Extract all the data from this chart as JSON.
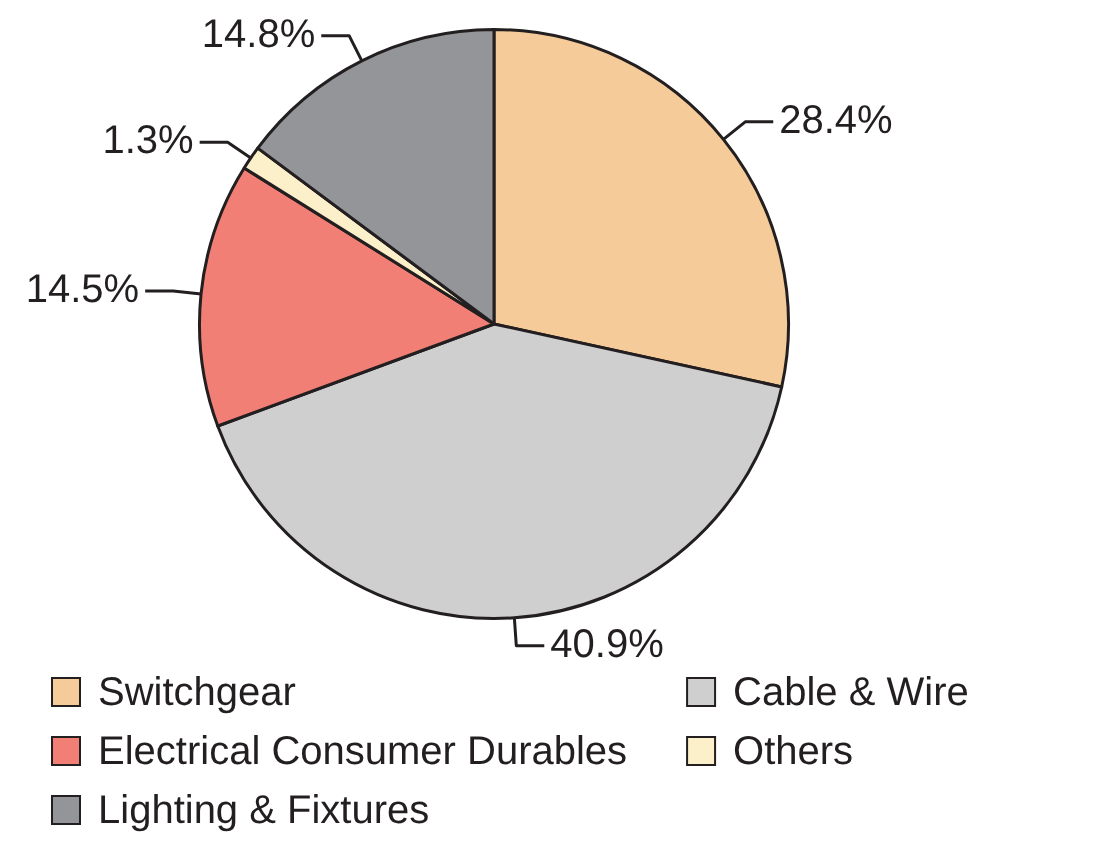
{
  "chart_data": {
    "type": "pie",
    "categories": [
      "Switchgear",
      "Cable & Wire",
      "Electrical Consumer Durables",
      "Others",
      "Lighting & Fixtures"
    ],
    "values": [
      28.4,
      40.9,
      14.5,
      1.3,
      14.8
    ],
    "colors": [
      "#f6cb9a",
      "#cfcfcf",
      "#f27f75",
      "#fbf0c9",
      "#939598"
    ],
    "value_labels": [
      "28.4%",
      "40.9%",
      "14.5%",
      "1.3%",
      "14.8%"
    ],
    "legend": "bottom"
  }
}
